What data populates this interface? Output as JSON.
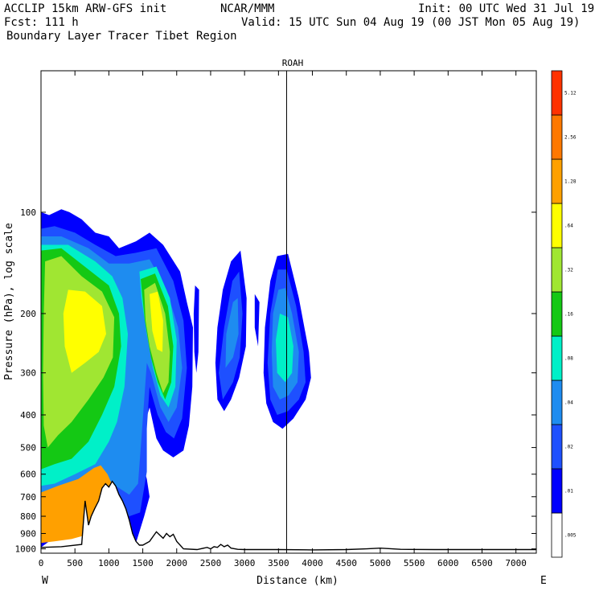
{
  "header": {
    "model_line": "ACCLIP 15km ARW-GFS init",
    "org": "NCAR/MMM",
    "init_line": "Init: 00 UTC Wed 31 Jul 19",
    "forecast_line": "Fcst:  111 h",
    "valid_line": "Valid: 15 UTC Sun 04 Aug 19 (00 JST Mon 05 Aug 19)",
    "field_line": "Boundary Layer Tracer  Tibet Region"
  },
  "chart_data": {
    "type": "cross-section",
    "title": "ROAH",
    "xlabel": "Distance (km)",
    "ylabel": "Pressure (hPa), log scale",
    "xlim": [
      0,
      7300
    ],
    "ylim": [
      1030,
      38
    ],
    "x_ticks": [
      0,
      500,
      1000,
      1500,
      2000,
      2500,
      3000,
      3500,
      4000,
      4500,
      5000,
      5500,
      6000,
      6500,
      7000
    ],
    "y_ticks": [
      100,
      200,
      300,
      400,
      500,
      600,
      700,
      800,
      900,
      1000
    ],
    "endpoint_left": "W",
    "endpoint_right": "E",
    "station_marker_km": 3620,
    "colorbar": {
      "levels": [
        ".005",
        ".01",
        ".02",
        ".04",
        ".08",
        ".16",
        ".32",
        ".64",
        "1.28",
        "2.56",
        "5.12"
      ],
      "colors": [
        "#ffffff",
        "#0000ff",
        "#1e50ff",
        "#1e8cf0",
        "#00f0c8",
        "#14c814",
        "#a0e632",
        "#ffff00",
        "#ffa000",
        "#ff7800",
        "#ff3200"
      ]
    },
    "terrain": {
      "distance_km": [
        0,
        300,
        600,
        650,
        700,
        740,
        790,
        850,
        900,
        950,
        1000,
        1050,
        1100,
        1150,
        1200,
        1250,
        1300,
        1350,
        1400,
        1450,
        1500,
        1600,
        1700,
        1750,
        1800,
        1850,
        1900,
        1950,
        2000,
        2100,
        2300,
        2450,
        2500,
        2550,
        2600,
        2650,
        2700,
        2750,
        2800,
        2900,
        3000,
        3500,
        4000,
        4500,
        4800,
        5000,
        5300,
        5800,
        6500,
        7300
      ],
      "pressure_hpa": [
        990,
        985,
        970,
        720,
        850,
        800,
        760,
        720,
        660,
        640,
        655,
        630,
        650,
        690,
        720,
        760,
        820,
        900,
        950,
        975,
        975,
        950,
        890,
        910,
        930,
        900,
        920,
        905,
        950,
        1000,
        1005,
        990,
        1000,
        985,
        990,
        970,
        985,
        975,
        995,
        1003,
        1005,
        1005,
        1007,
        1005,
        1000,
        995,
        1003,
        1005,
        1005,
        1005
      ]
    },
    "plumes": [
      {
        "level": ".01",
        "points": [
          [
            0,
            100
          ],
          [
            120,
            102
          ],
          [
            300,
            98
          ],
          [
            420,
            100
          ],
          [
            600,
            105
          ],
          [
            800,
            115
          ],
          [
            1000,
            118
          ],
          [
            1150,
            128
          ],
          [
            1400,
            122
          ],
          [
            1600,
            115
          ],
          [
            1800,
            125
          ],
          [
            2050,
            150
          ],
          [
            2150,
            185
          ],
          [
            2240,
            220
          ],
          [
            2230,
            330
          ],
          [
            2180,
            430
          ],
          [
            2100,
            510
          ],
          [
            1950,
            535
          ],
          [
            1800,
            510
          ],
          [
            1700,
            470
          ],
          [
            1600,
            380
          ],
          [
            1520,
            430
          ],
          [
            1500,
            560
          ],
          [
            1560,
            620
          ],
          [
            1600,
            700
          ],
          [
            1520,
            800
          ],
          [
            1400,
            960
          ],
          [
            1250,
            900
          ],
          [
            1000,
            770
          ],
          [
            700,
            760
          ],
          [
            400,
            840
          ],
          [
            150,
            940
          ],
          [
            0,
            990
          ]
        ]
      },
      {
        "level": ".01",
        "points": [
          [
            2270,
            165
          ],
          [
            2330,
            170
          ],
          [
            2320,
            260
          ],
          [
            2290,
            300
          ],
          [
            2260,
            260
          ],
          [
            2250,
            200
          ]
        ]
      },
      {
        "level": ".01",
        "points": [
          [
            2800,
            140
          ],
          [
            2940,
            130
          ],
          [
            3030,
            180
          ],
          [
            3020,
            250
          ],
          [
            2920,
            310
          ],
          [
            2800,
            360
          ],
          [
            2700,
            390
          ],
          [
            2600,
            360
          ],
          [
            2570,
            280
          ],
          [
            2600,
            220
          ],
          [
            2680,
            170
          ]
        ]
      },
      {
        "level": ".01",
        "points": [
          [
            3150,
            175
          ],
          [
            3220,
            185
          ],
          [
            3200,
            250
          ],
          [
            3150,
            220
          ]
        ]
      },
      {
        "level": ".01",
        "points": [
          [
            3480,
            135
          ],
          [
            3640,
            133
          ],
          [
            3800,
            180
          ],
          [
            3950,
            260
          ],
          [
            3980,
            310
          ],
          [
            3900,
            360
          ],
          [
            3720,
            410
          ],
          [
            3560,
            440
          ],
          [
            3420,
            420
          ],
          [
            3320,
            370
          ],
          [
            3280,
            300
          ],
          [
            3300,
            220
          ],
          [
            3380,
            160
          ]
        ]
      },
      {
        "level": ".02",
        "points": [
          [
            0,
            112
          ],
          [
            200,
            110
          ],
          [
            500,
            115
          ],
          [
            800,
            125
          ],
          [
            1100,
            135
          ],
          [
            1400,
            132
          ],
          [
            1700,
            128
          ],
          [
            1950,
            160
          ],
          [
            2100,
            210
          ],
          [
            2150,
            290
          ],
          [
            2080,
            410
          ],
          [
            1960,
            470
          ],
          [
            1840,
            450
          ],
          [
            1720,
            400
          ],
          [
            1600,
            330
          ],
          [
            1560,
            440
          ],
          [
            1560,
            590
          ],
          [
            1460,
            780
          ],
          [
            1300,
            800
          ],
          [
            1000,
            700
          ],
          [
            700,
            700
          ],
          [
            400,
            780
          ],
          [
            100,
            880
          ],
          [
            0,
            900
          ]
        ]
      },
      {
        "level": ".02",
        "points": [
          [
            2820,
            160
          ],
          [
            2920,
            150
          ],
          [
            2970,
            200
          ],
          [
            2930,
            270
          ],
          [
            2830,
            320
          ],
          [
            2680,
            360
          ],
          [
            2620,
            300
          ],
          [
            2700,
            220
          ]
        ]
      },
      {
        "level": ".02",
        "points": [
          [
            3490,
            148
          ],
          [
            3620,
            148
          ],
          [
            3760,
            190
          ],
          [
            3870,
            260
          ],
          [
            3900,
            320
          ],
          [
            3800,
            360
          ],
          [
            3640,
            390
          ],
          [
            3480,
            400
          ],
          [
            3380,
            360
          ],
          [
            3340,
            280
          ],
          [
            3380,
            200
          ]
        ]
      },
      {
        "level": ".04",
        "points": [
          [
            0,
            118
          ],
          [
            300,
            118
          ],
          [
            700,
            128
          ],
          [
            1000,
            142
          ],
          [
            1300,
            142
          ],
          [
            1600,
            138
          ],
          [
            1850,
            170
          ],
          [
            2020,
            220
          ],
          [
            2080,
            290
          ],
          [
            2000,
            380
          ],
          [
            1880,
            420
          ],
          [
            1760,
            380
          ],
          [
            1620,
            300
          ],
          [
            1560,
            280
          ],
          [
            1480,
            470
          ],
          [
            1430,
            640
          ],
          [
            1300,
            690
          ],
          [
            1050,
            640
          ],
          [
            700,
            650
          ],
          [
            350,
            700
          ],
          [
            0,
            740
          ]
        ]
      },
      {
        "level": ".04",
        "points": [
          [
            2830,
            185
          ],
          [
            2900,
            180
          ],
          [
            2910,
            230
          ],
          [
            2830,
            270
          ],
          [
            2720,
            290
          ],
          [
            2730,
            230
          ]
        ]
      },
      {
        "level": ".04",
        "points": [
          [
            3500,
            170
          ],
          [
            3600,
            168
          ],
          [
            3700,
            200
          ],
          [
            3800,
            260
          ],
          [
            3780,
            320
          ],
          [
            3650,
            350
          ],
          [
            3520,
            360
          ],
          [
            3420,
            330
          ],
          [
            3400,
            260
          ],
          [
            3420,
            200
          ]
        ]
      },
      {
        "level": ".08",
        "points": [
          [
            0,
            125
          ],
          [
            400,
            125
          ],
          [
            800,
            140
          ],
          [
            1050,
            155
          ],
          [
            1200,
            180
          ],
          [
            1280,
            230
          ],
          [
            1230,
            330
          ],
          [
            1120,
            420
          ],
          [
            1000,
            480
          ],
          [
            800,
            560
          ],
          [
            500,
            600
          ],
          [
            200,
            640
          ],
          [
            0,
            650
          ]
        ]
      },
      {
        "level": ".08",
        "points": [
          [
            1450,
            150
          ],
          [
            1700,
            145
          ],
          [
            1900,
            180
          ],
          [
            2000,
            240
          ],
          [
            1980,
            330
          ],
          [
            1880,
            380
          ],
          [
            1760,
            350
          ],
          [
            1650,
            290
          ],
          [
            1560,
            230
          ],
          [
            1480,
            180
          ]
        ]
      },
      {
        "level": ".08",
        "points": [
          [
            3520,
            200
          ],
          [
            3640,
            205
          ],
          [
            3720,
            250
          ],
          [
            3700,
            300
          ],
          [
            3600,
            320
          ],
          [
            3480,
            300
          ],
          [
            3460,
            240
          ]
        ]
      },
      {
        "level": ".16",
        "points": [
          [
            0,
            130
          ],
          [
            300,
            128
          ],
          [
            700,
            148
          ],
          [
            1000,
            165
          ],
          [
            1150,
            200
          ],
          [
            1180,
            250
          ],
          [
            1080,
            330
          ],
          [
            900,
            400
          ],
          [
            700,
            480
          ],
          [
            450,
            540
          ],
          [
            200,
            560
          ],
          [
            0,
            580
          ]
        ]
      },
      {
        "level": ".16",
        "points": [
          [
            1470,
            158
          ],
          [
            1680,
            152
          ],
          [
            1870,
            190
          ],
          [
            1950,
            250
          ],
          [
            1920,
            320
          ],
          [
            1830,
            360
          ],
          [
            1720,
            320
          ],
          [
            1620,
            270
          ],
          [
            1530,
            210
          ]
        ]
      },
      {
        "level": ".32",
        "points": [
          [
            60,
            140
          ],
          [
            300,
            135
          ],
          [
            600,
            155
          ],
          [
            900,
            172
          ],
          [
            1080,
            205
          ],
          [
            1060,
            270
          ],
          [
            920,
            310
          ],
          [
            700,
            360
          ],
          [
            450,
            420
          ],
          [
            250,
            460
          ],
          [
            100,
            500
          ],
          [
            40,
            430
          ],
          [
            30,
            300
          ],
          [
            40,
            200
          ]
        ]
      },
      {
        "level": ".32",
        "points": [
          [
            1520,
            170
          ],
          [
            1680,
            162
          ],
          [
            1830,
            200
          ],
          [
            1900,
            260
          ],
          [
            1880,
            320
          ],
          [
            1800,
            345
          ],
          [
            1700,
            300
          ],
          [
            1600,
            250
          ],
          [
            1540,
            210
          ]
        ]
      },
      {
        "level": ".64",
        "points": [
          [
            400,
            170
          ],
          [
            650,
            172
          ],
          [
            900,
            190
          ],
          [
            960,
            230
          ],
          [
            850,
            260
          ],
          [
            650,
            280
          ],
          [
            450,
            300
          ],
          [
            350,
            250
          ],
          [
            330,
            200
          ]
        ]
      },
      {
        "level": ".64",
        "points": [
          [
            1600,
            175
          ],
          [
            1720,
            172
          ],
          [
            1800,
            210
          ],
          [
            1790,
            260
          ],
          [
            1710,
            255
          ],
          [
            1640,
            225
          ]
        ]
      },
      {
        "level": "1.28",
        "points": [
          [
            0,
            680
          ],
          [
            250,
            650
          ],
          [
            550,
            620
          ],
          [
            780,
            575
          ],
          [
            880,
            565
          ],
          [
            980,
            600
          ],
          [
            1100,
            680
          ],
          [
            1200,
            760
          ],
          [
            1280,
            800
          ],
          [
            1300,
            830
          ],
          [
            1100,
            860
          ],
          [
            900,
            880
          ],
          [
            700,
            905
          ],
          [
            450,
            935
          ],
          [
            200,
            950
          ],
          [
            0,
            960
          ]
        ]
      }
    ]
  }
}
